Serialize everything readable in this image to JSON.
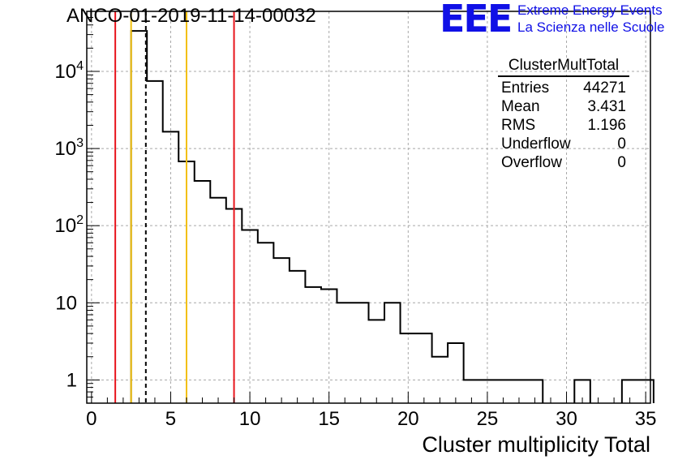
{
  "run_title": "ANCO-01-2019-11-14-00032",
  "logo": {
    "mark": "EEE",
    "line1": "Extreme Energy Events",
    "line2": "La Scienza nelle Scuole",
    "color": "#1010e6"
  },
  "stats_box": {
    "title": "ClusterMultTotal",
    "rows": [
      {
        "label": "Entries",
        "value": "44271"
      },
      {
        "label": "Mean",
        "value": "3.431"
      },
      {
        "label": "RMS",
        "value": "1.196"
      },
      {
        "label": "Underflow",
        "value": "0"
      },
      {
        "label": "Overflow",
        "value": "0"
      }
    ]
  },
  "chart_data": {
    "type": "histogram",
    "title": "ANCO-01-2019-11-14-00032",
    "xlabel": "Cluster multiplicity Total",
    "ylabel": "",
    "xlim": [
      -0.3,
      35.3
    ],
    "ylim": [
      0.5,
      60000
    ],
    "yscale": "log",
    "grid": true,
    "bin_width": 1,
    "bins": [
      {
        "x0": 2.5,
        "count": 33500
      },
      {
        "x0": 3.5,
        "count": 7500
      },
      {
        "x0": 4.5,
        "count": 1650
      },
      {
        "x0": 5.5,
        "count": 680
      },
      {
        "x0": 6.5,
        "count": 380
      },
      {
        "x0": 7.5,
        "count": 230
      },
      {
        "x0": 8.5,
        "count": 165
      },
      {
        "x0": 9.5,
        "count": 88
      },
      {
        "x0": 10.5,
        "count": 60
      },
      {
        "x0": 11.5,
        "count": 38
      },
      {
        "x0": 12.5,
        "count": 26
      },
      {
        "x0": 13.5,
        "count": 16
      },
      {
        "x0": 14.5,
        "count": 15
      },
      {
        "x0": 15.5,
        "count": 10
      },
      {
        "x0": 16.5,
        "count": 10
      },
      {
        "x0": 17.5,
        "count": 6
      },
      {
        "x0": 18.5,
        "count": 10
      },
      {
        "x0": 19.5,
        "count": 4
      },
      {
        "x0": 20.5,
        "count": 4
      },
      {
        "x0": 21.5,
        "count": 2
      },
      {
        "x0": 22.5,
        "count": 3
      },
      {
        "x0": 23.5,
        "count": 1
      },
      {
        "x0": 24.5,
        "count": 1
      },
      {
        "x0": 25.5,
        "count": 1
      },
      {
        "x0": 26.5,
        "count": 1
      },
      {
        "x0": 27.5,
        "count": 1
      },
      {
        "x0": 30.5,
        "count": 1
      },
      {
        "x0": 33.5,
        "count": 1
      },
      {
        "x0": 34.5,
        "count": 1
      }
    ],
    "x_ticks": [
      0,
      5,
      10,
      15,
      20,
      25,
      30,
      35
    ],
    "y_ticks": [
      {
        "value": 1,
        "label": "1",
        "exp": ""
      },
      {
        "value": 10,
        "label": "10",
        "exp": ""
      },
      {
        "value": 100,
        "label": "10",
        "exp": "2"
      },
      {
        "value": 1000,
        "label": "10",
        "exp": "3"
      },
      {
        "value": 10000,
        "label": "10",
        "exp": "4"
      }
    ],
    "vertical_lines": [
      {
        "name": "red-line-low",
        "x": 1.5,
        "color": "#e8141c",
        "style": "solid"
      },
      {
        "name": "yellow-line-low",
        "x": 2.5,
        "color": "#f2c00c",
        "style": "solid"
      },
      {
        "name": "mean-line",
        "x": 3.43,
        "color": "#000000",
        "style": "dashed"
      },
      {
        "name": "yellow-line-high",
        "x": 6.0,
        "color": "#f2c00c",
        "style": "solid"
      },
      {
        "name": "red-line-high",
        "x": 9.0,
        "color": "#e8141c",
        "style": "solid"
      }
    ]
  }
}
